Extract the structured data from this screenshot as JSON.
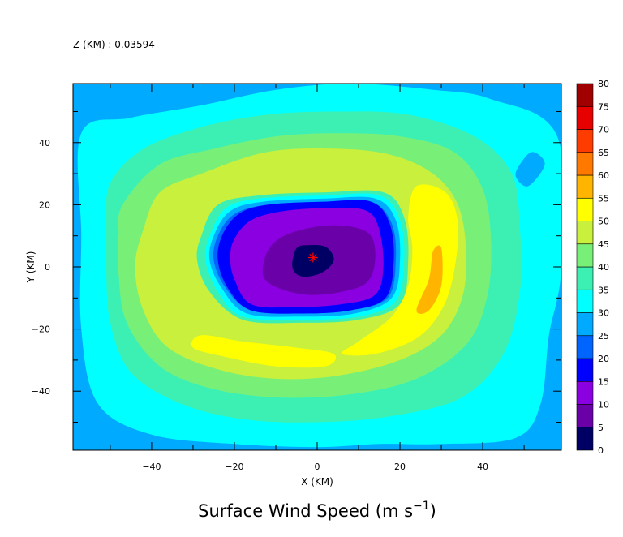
{
  "header": {
    "level_text": "Z (KM) : 0.03594"
  },
  "chart_data": {
    "type": "heatmap",
    "title_text": "Surface Wind Speed (m s",
    "title_exponent": "−1",
    "title_close": ")",
    "xlabel": "X (KM)",
    "ylabel": "Y (KM)",
    "xlim": [
      -59,
      59
    ],
    "ylim": [
      -59,
      59
    ],
    "x_ticks": [
      -40,
      -20,
      0,
      20,
      40
    ],
    "y_ticks": [
      -40,
      -20,
      0,
      20,
      40
    ],
    "x_tick_labels": [
      "−40",
      "−20",
      "0",
      "20",
      "40"
    ],
    "y_tick_labels": [
      "−40",
      "−20",
      "0",
      "20",
      "40"
    ],
    "colorbar": {
      "levels": [
        0,
        5,
        10,
        15,
        20,
        25,
        30,
        35,
        40,
        45,
        50,
        55,
        60,
        65,
        70,
        75,
        80
      ],
      "labels": [
        "0",
        "5",
        "10",
        "15",
        "20",
        "25",
        "30",
        "35",
        "40",
        "45",
        "50",
        "55",
        "60",
        "65",
        "70",
        "75",
        "80"
      ],
      "colors": [
        "#000064",
        "#6a00a8",
        "#8b00e0",
        "#0000ff",
        "#0064ff",
        "#00aaff",
        "#00ffff",
        "#3cf0b4",
        "#78f078",
        "#c8f03c",
        "#ffff00",
        "#ffb400",
        "#ff7800",
        "#ff3c00",
        "#e60000",
        "#a00000"
      ]
    },
    "contours": [
      {
        "level": 25,
        "color": "#00aaff",
        "points": [
          [
            -59,
            59
          ],
          [
            59,
            59
          ],
          [
            59,
            -59
          ],
          [
            -59,
            -59
          ]
        ]
      },
      {
        "level": 30,
        "color": "#00ffff",
        "points": [
          [
            -57,
            43
          ],
          [
            -45,
            48
          ],
          [
            -28,
            52
          ],
          [
            -10,
            57
          ],
          [
            8,
            59
          ],
          [
            28,
            57
          ],
          [
            42,
            54
          ],
          [
            58,
            42
          ],
          [
            59,
            0
          ],
          [
            56,
            -22
          ],
          [
            54,
            -44
          ],
          [
            48,
            -55
          ],
          [
            30,
            -57
          ],
          [
            15,
            -57
          ],
          [
            0,
            -58
          ],
          [
            -20,
            -57
          ],
          [
            -40,
            -54
          ],
          [
            -53,
            -44
          ],
          [
            -57,
            -20
          ],
          [
            -57,
            10
          ]
        ]
      },
      {
        "level": 35,
        "color": "#3cf0b4",
        "points": [
          [
            -50,
            27
          ],
          [
            -42,
            38
          ],
          [
            -28,
            45
          ],
          [
            -12,
            49
          ],
          [
            5,
            50
          ],
          [
            22,
            49
          ],
          [
            38,
            42
          ],
          [
            47,
            30
          ],
          [
            49,
            12
          ],
          [
            49,
            -8
          ],
          [
            45,
            -28
          ],
          [
            35,
            -42
          ],
          [
            18,
            -48
          ],
          [
            0,
            -50
          ],
          [
            -18,
            -49
          ],
          [
            -33,
            -44
          ],
          [
            -45,
            -34
          ],
          [
            -50,
            -18
          ],
          [
            -51,
            0
          ],
          [
            -51,
            14
          ]
        ]
      },
      {
        "level": 40,
        "color": "#78f078",
        "points": [
          [
            -47,
            20
          ],
          [
            -38,
            33
          ],
          [
            -25,
            38
          ],
          [
            -10,
            42
          ],
          [
            5,
            43
          ],
          [
            20,
            42
          ],
          [
            33,
            37
          ],
          [
            40,
            25
          ],
          [
            42,
            8
          ],
          [
            41,
            -10
          ],
          [
            36,
            -25
          ],
          [
            24,
            -36
          ],
          [
            8,
            -41
          ],
          [
            -10,
            -42
          ],
          [
            -26,
            -39
          ],
          [
            -38,
            -32
          ],
          [
            -46,
            -18
          ],
          [
            -48,
            -2
          ],
          [
            -48,
            10
          ]
        ]
      },
      {
        "level": 45,
        "color": "#c8f03c",
        "points": [
          [
            -42,
            12
          ],
          [
            -38,
            24
          ],
          [
            -28,
            30
          ],
          [
            -12,
            37
          ],
          [
            5,
            38
          ],
          [
            18,
            36
          ],
          [
            28,
            30
          ],
          [
            34,
            20
          ],
          [
            36,
            5
          ],
          [
            35,
            -10
          ],
          [
            30,
            -22
          ],
          [
            20,
            -30
          ],
          [
            5,
            -35
          ],
          [
            -10,
            -36
          ],
          [
            -24,
            -33
          ],
          [
            -36,
            -26
          ],
          [
            -42,
            -14
          ],
          [
            -44,
            0
          ]
        ]
      },
      {
        "level": 50,
        "color": "#ffff00",
        "points": [
          [
            24,
            26
          ],
          [
            31,
            24
          ],
          [
            34,
            14
          ],
          [
            33,
            -2
          ],
          [
            30,
            -14
          ],
          [
            24,
            -23
          ],
          [
            14,
            -28
          ],
          [
            6,
            -28
          ],
          [
            10,
            -24
          ],
          [
            18,
            -16
          ],
          [
            22,
            -6
          ],
          [
            23,
            6
          ],
          [
            22,
            16
          ]
        ]
      },
      {
        "level": 50,
        "color": "#ffff00",
        "points": [
          [
            -28,
            -22
          ],
          [
            -18,
            -24
          ],
          [
            -5,
            -26
          ],
          [
            4,
            -28
          ],
          [
            2,
            -32
          ],
          [
            -10,
            -32
          ],
          [
            -22,
            -29
          ],
          [
            -30,
            -26
          ]
        ]
      },
      {
        "level": 55,
        "color": "#ffb400",
        "points": [
          [
            28,
            5
          ],
          [
            30,
            6
          ],
          [
            30,
            -6
          ],
          [
            27,
            -14
          ],
          [
            24,
            -14
          ],
          [
            27,
            -4
          ]
        ]
      },
      {
        "level": 35,
        "color": "#3cf0b4",
        "points": [
          [
            -28,
            10
          ],
          [
            -24,
            20
          ],
          [
            -14,
            23
          ],
          [
            2,
            24
          ],
          [
            16,
            24
          ],
          [
            21,
            16
          ],
          [
            22,
            2
          ],
          [
            20,
            -12
          ],
          [
            10,
            -17
          ],
          [
            -4,
            -18
          ],
          [
            -18,
            -17
          ],
          [
            -26,
            -8
          ],
          [
            -29,
            2
          ]
        ]
      },
      {
        "level": 30,
        "color": "#00ffff",
        "points": [
          [
            -26,
            10
          ],
          [
            -22,
            19
          ],
          [
            -14,
            22
          ],
          [
            2,
            23
          ],
          [
            15,
            23
          ],
          [
            20,
            15
          ],
          [
            21,
            2
          ],
          [
            19,
            -11
          ],
          [
            10,
            -16
          ],
          [
            -4,
            -17
          ],
          [
            -18,
            -16
          ],
          [
            -24,
            -8
          ],
          [
            -27,
            2
          ]
        ]
      },
      {
        "level": 25,
        "color": "#00aaff",
        "points": [
          [
            -25,
            10
          ],
          [
            -21,
            18
          ],
          [
            -13,
            21
          ],
          [
            2,
            22
          ],
          [
            14,
            22
          ],
          [
            19,
            15
          ],
          [
            20,
            2
          ],
          [
            18,
            -10
          ],
          [
            9,
            -15
          ],
          [
            -4,
            -16
          ],
          [
            -17,
            -15
          ],
          [
            -23,
            -7
          ],
          [
            -26,
            2
          ]
        ]
      },
      {
        "level": 20,
        "color": "#0064ff",
        "points": [
          [
            -24,
            10
          ],
          [
            -20,
            17
          ],
          [
            -12,
            20
          ],
          [
            2,
            21
          ],
          [
            13,
            21
          ],
          [
            18,
            14
          ],
          [
            19,
            2
          ],
          [
            17,
            -10
          ],
          [
            8,
            -14
          ],
          [
            -4,
            -15
          ],
          [
            -16,
            -14
          ],
          [
            -22,
            -7
          ],
          [
            -25,
            2
          ]
        ]
      },
      {
        "level": 15,
        "color": "#0000ff",
        "points": [
          [
            -23,
            10
          ],
          [
            -19,
            17
          ],
          [
            -12,
            20
          ],
          [
            2,
            21
          ],
          [
            13,
            21
          ],
          [
            17.5,
            14
          ],
          [
            18.5,
            2
          ],
          [
            16.5,
            -10
          ],
          [
            8,
            -14
          ],
          [
            -4,
            -15
          ],
          [
            -16,
            -14
          ],
          [
            -21.5,
            -7
          ],
          [
            -24,
            2
          ]
        ]
      },
      {
        "level": 10,
        "color": "#8b00e0",
        "points": [
          [
            -20,
            9
          ],
          [
            -16,
            15
          ],
          [
            -8,
            18
          ],
          [
            4,
            19
          ],
          [
            12,
            18
          ],
          [
            15,
            12
          ],
          [
            16,
            0
          ],
          [
            14,
            -9
          ],
          [
            6,
            -12
          ],
          [
            -6,
            -13
          ],
          [
            -16,
            -12
          ],
          [
            -20,
            -4
          ],
          [
            -21,
            3
          ]
        ]
      },
      {
        "level": 5,
        "color": "#6a00a8",
        "points": [
          [
            -12,
            5
          ],
          [
            -8,
            10
          ],
          [
            0,
            13
          ],
          [
            8,
            13
          ],
          [
            13,
            10
          ],
          [
            14,
            2
          ],
          [
            12,
            -5
          ],
          [
            6,
            -8
          ],
          [
            -2,
            -9
          ],
          [
            -9,
            -7
          ],
          [
            -13,
            -3
          ]
        ]
      },
      {
        "level": 0,
        "color": "#000064",
        "points": [
          [
            -5,
            6
          ],
          [
            -2,
            7
          ],
          [
            2,
            6.5
          ],
          [
            4,
            3
          ],
          [
            3,
            0
          ],
          [
            0,
            -2.5
          ],
          [
            -4,
            -3
          ],
          [
            -6,
            0
          ]
        ]
      },
      {
        "level": 25,
        "color": "#00aaff",
        "points": [
          [
            51,
            26
          ],
          [
            55,
            33
          ],
          [
            52,
            37
          ],
          [
            49,
            33
          ],
          [
            48,
            29
          ]
        ]
      }
    ],
    "center_marker": {
      "x": -1,
      "y": 3,
      "color": "#ff0000"
    }
  }
}
